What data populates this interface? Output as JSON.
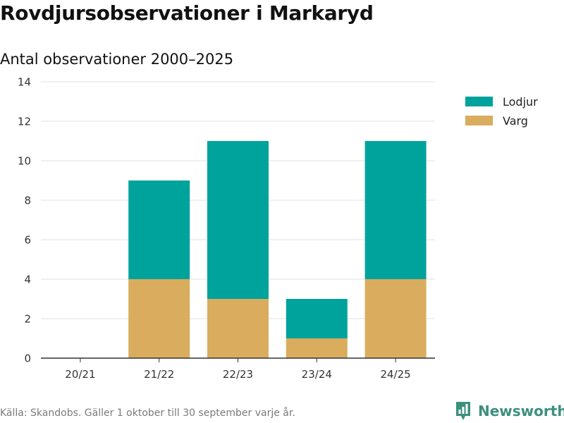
{
  "header": {
    "title": "Rovdjursobservationer i Markaryd",
    "subtitle": "Antal observationer 2000–2025"
  },
  "footer": {
    "source": "Källa: Skandobs. Gäller 1 oktober till 30 september varje år.",
    "brand": "Newsworthy"
  },
  "chart_data": {
    "type": "bar",
    "stacked": true,
    "categories": [
      "20/21",
      "21/22",
      "22/23",
      "23/24",
      "24/25"
    ],
    "series": [
      {
        "name": "Lodjur",
        "color": "#00a39b",
        "values": [
          0,
          5,
          8,
          2,
          7
        ]
      },
      {
        "name": "Varg",
        "color": "#d9ad5d",
        "values": [
          0,
          4,
          3,
          1,
          4
        ]
      }
    ],
    "y_ticks": [
      0,
      2,
      4,
      6,
      8,
      10,
      12,
      14
    ],
    "ylim": [
      0,
      14
    ],
    "grid": true,
    "legend": "top-right"
  },
  "colors": {
    "brand": "#3d8f7f",
    "gridline": "#e2e2e2"
  },
  "icons": {
    "brand": "bar-chart-badge-icon"
  }
}
